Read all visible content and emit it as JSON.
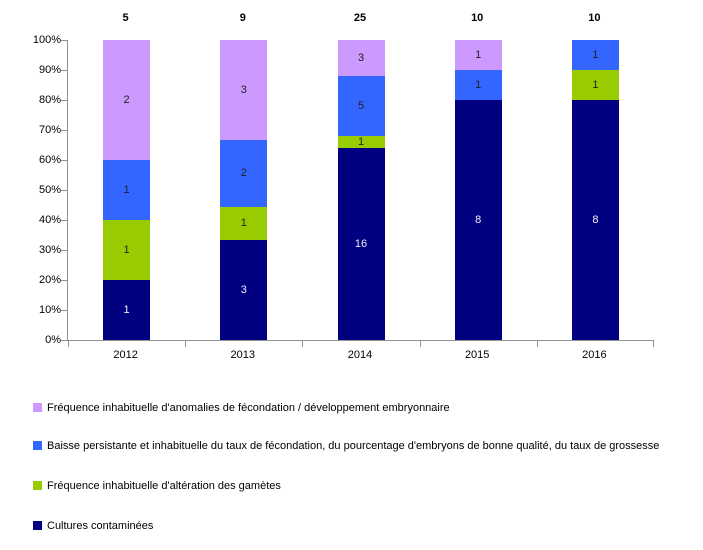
{
  "chart_data": {
    "type": "bar",
    "variant": "stacked-100-percent",
    "categories": [
      "2012",
      "2013",
      "2014",
      "2015",
      "2016"
    ],
    "totals": [
      5,
      9,
      25,
      10,
      10
    ],
    "series": [
      {
        "name": "Cultures contaminées",
        "color": "#000080",
        "label_color": "#f2f2f7",
        "values": [
          1,
          3,
          16,
          8,
          8
        ]
      },
      {
        "name": "Fréquence inhabituelle d'altération des gamètes",
        "color": "#99CC00",
        "label_color": "#1f1f1f",
        "values": [
          1,
          1,
          1,
          0,
          1
        ]
      },
      {
        "name": "Baisse persistante et inhabituelle du taux de fécondation, du pourcentage d'embryons de bonne qualité, du taux de grossesse",
        "color": "#3366FF",
        "label_color": "#1f1f1f",
        "values": [
          1,
          2,
          5,
          1,
          1
        ]
      },
      {
        "name": "Fréquence inhabituelle d'anomalies de fécondation / développement embryonnaire",
        "color": "#CC99FF",
        "label_color": "#1f1f1f",
        "values": [
          2,
          3,
          3,
          1,
          0
        ]
      }
    ],
    "y_axis": {
      "tick_labels": [
        "100%",
        "90%",
        "80%",
        "70%",
        "60%",
        "50%",
        "40%",
        "30%",
        "20%",
        "10%",
        "0%"
      ],
      "min_percent": 0,
      "max_percent": 100,
      "gridlines": false
    },
    "legend": {
      "position": "bottom-left",
      "entries": [
        {
          "label": "Fréquence inhabituelle d'anomalies de fécondation / développement embryonnaire",
          "color": "#CC99FF"
        },
        {
          "label": "Baisse persistante et inhabituelle du taux de fécondation, du pourcentage d'embryons de bonne qualité, du taux de grossesse",
          "color": "#3366FF"
        },
        {
          "label": "Fréquence inhabituelle d'altération des gamètes",
          "color": "#99CC00"
        },
        {
          "label": "Cultures contaminées",
          "color": "#000080"
        }
      ]
    }
  },
  "colors": {
    "axis_line": "#8f8f8f",
    "background": "#ffffff",
    "axis_text": "#000000",
    "total_text": "#000000"
  }
}
